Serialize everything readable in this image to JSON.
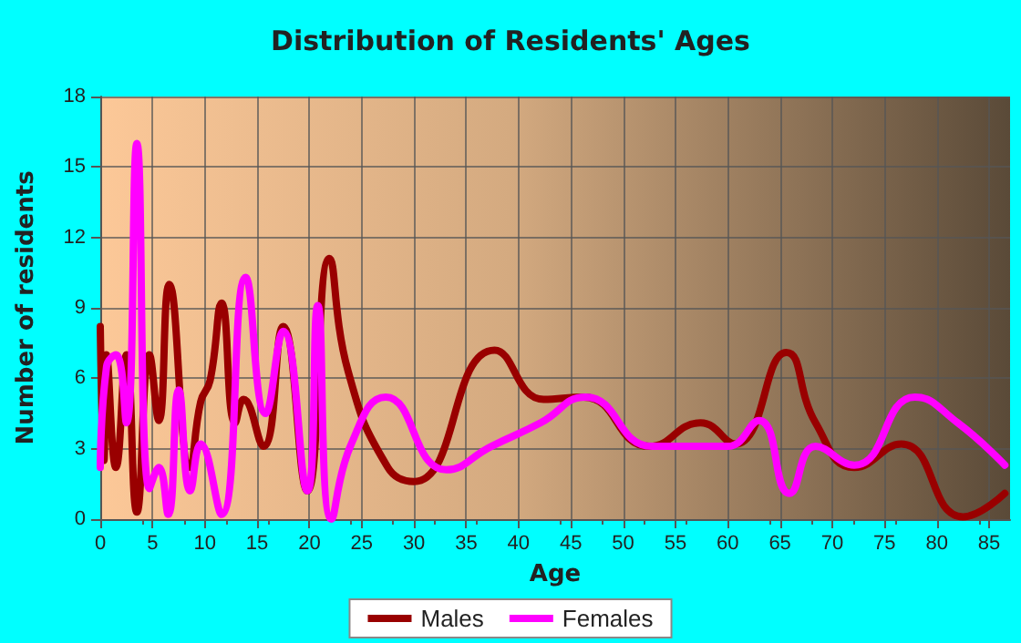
{
  "chart_data": {
    "type": "line",
    "title": "Distribution of Residents' Ages",
    "xlabel": "Age",
    "ylabel": "Number of residents",
    "xlim": [
      0,
      87
    ],
    "xticks": [
      0,
      5,
      10,
      15,
      20,
      25,
      30,
      35,
      40,
      45,
      50,
      55,
      60,
      65,
      70,
      75,
      80,
      85
    ],
    "ylim": [
      0,
      18
    ],
    "yticks": [
      0,
      3,
      6,
      9,
      12,
      15,
      18
    ],
    "grid": true,
    "legend": "bottom",
    "marker": "none",
    "line_style": "solid",
    "series": [
      {
        "name": "Males",
        "color": "#990000",
        "x": [
          0,
          0.35,
          0.6,
          1.5,
          2.5,
          3.5,
          4.7,
          5.6,
          6.6,
          8.6,
          9.6,
          10.5,
          11.6,
          12.9,
          13.7,
          15.6,
          17.5,
          19.8,
          21.9,
          23.7,
          27.5,
          30,
          37.7,
          42.4,
          46.2,
          52.5,
          57.4,
          60.7,
          65.6,
          68.4,
          72.1,
          76.6,
          82.5,
          86.5
        ],
        "values": [
          8.2,
          2.5,
          7,
          2.2,
          7,
          0.3,
          7,
          4.2,
          10,
          2.2,
          5,
          5.9,
          9.2,
          4.1,
          5.1,
          3.1,
          8.2,
          1.2,
          11.1,
          6.3,
          2.2,
          1.6,
          7.2,
          5.1,
          5.2,
          3.1,
          4.1,
          3.2,
          7.1,
          4.1,
          2.2,
          3.2,
          0.1,
          1.1
        ]
      },
      {
        "name": "Females",
        "color": "#ff00ff",
        "x": [
          0,
          0.6,
          1.5,
          2.5,
          3.5,
          4.7,
          5.6,
          6.5,
          7.5,
          8.6,
          9.6,
          11.6,
          13.9,
          15.8,
          17.5,
          19.8,
          20.8,
          22.1,
          24,
          27.3,
          33.1,
          37.4,
          42.1,
          46.4,
          52.8,
          56.6,
          60,
          63,
          65.9,
          68.4,
          72.1,
          77.9,
          82,
          86.5
        ],
        "values": [
          2.2,
          6.5,
          7,
          4.1,
          16,
          1.3,
          2.2,
          0.2,
          5.5,
          1.2,
          3.2,
          0.2,
          10.3,
          4.5,
          8,
          1.2,
          9.1,
          0,
          3.2,
          5.2,
          2.1,
          3.1,
          4.1,
          5.2,
          3.1,
          3.1,
          3.1,
          4.2,
          1.1,
          3.1,
          2.3,
          5.2,
          4.1,
          2.3
        ]
      }
    ]
  }
}
